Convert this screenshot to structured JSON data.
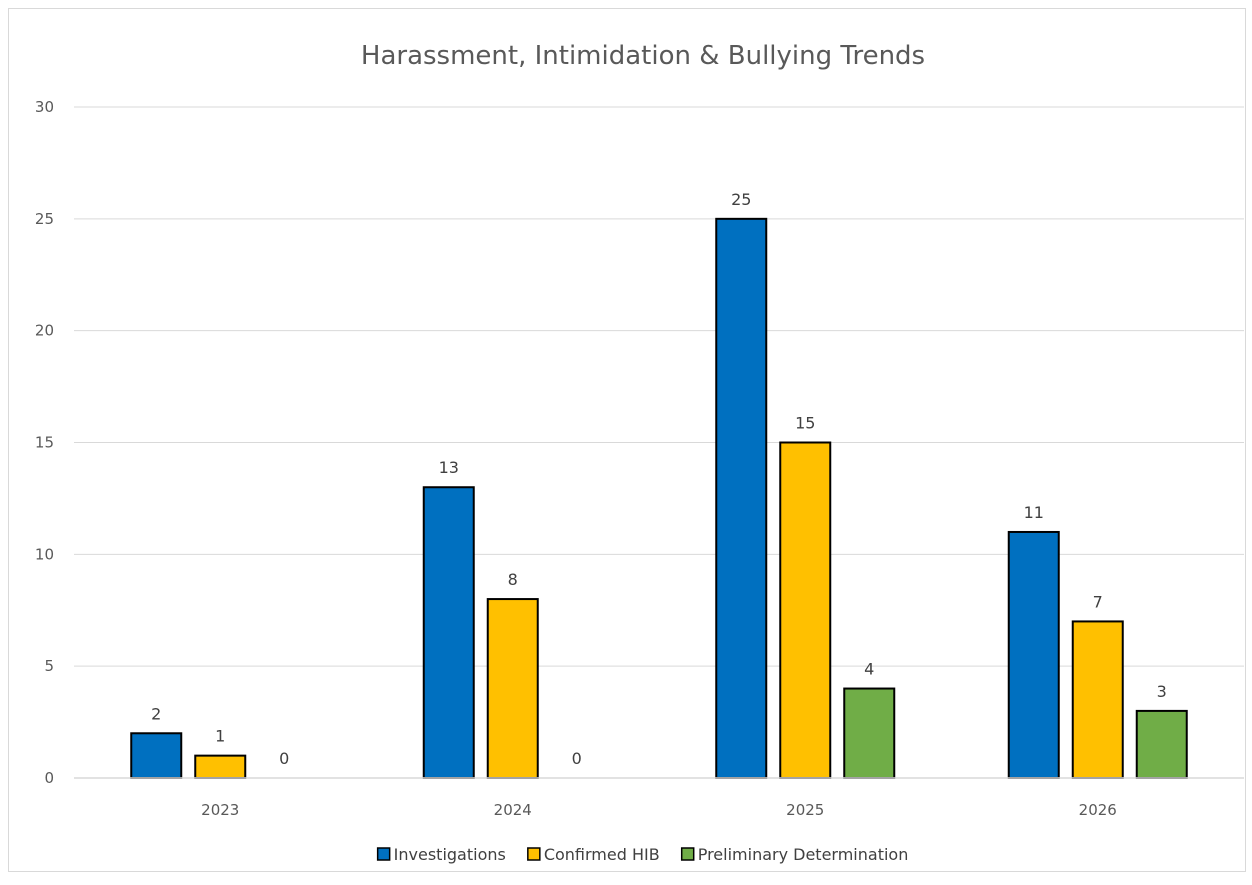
{
  "chart_data": {
    "type": "bar",
    "title": "Harassment, Intimidation & Bullying Trends",
    "xlabel": "",
    "ylabel": "",
    "categories": [
      "2023",
      "2024",
      "2025",
      "2026"
    ],
    "series": [
      {
        "name": "Investigations",
        "values": [
          2,
          13,
          25,
          11
        ],
        "color": "#0070C0"
      },
      {
        "name": "Confirmed HIB",
        "values": [
          1,
          8,
          15,
          7
        ],
        "color": "#FFC000"
      },
      {
        "name": "Preliminary Determination",
        "values": [
          0,
          0,
          4,
          3
        ],
        "color": "#70AD47"
      }
    ],
    "ylim": [
      0,
      30
    ],
    "yticks": [
      0,
      5,
      10,
      15,
      20,
      25,
      30
    ],
    "grid": true,
    "legend_position": "bottom"
  }
}
